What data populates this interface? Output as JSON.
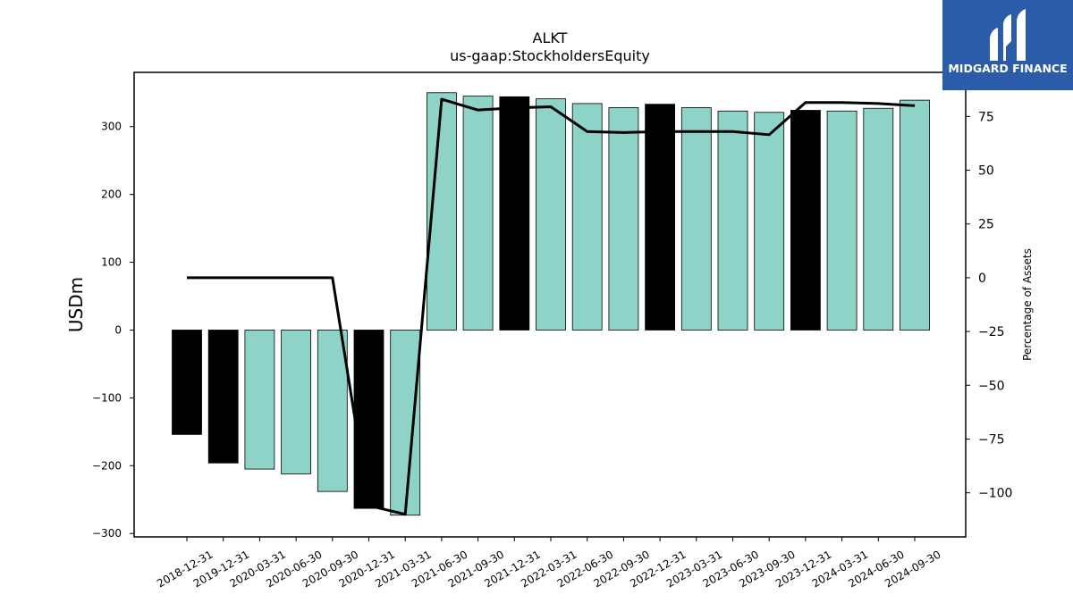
{
  "chart_data": {
    "type": "bar",
    "title": "ALKT",
    "subtitle": "us-gaap:StockholdersEquity",
    "ylabel": "USDm",
    "ylabel_right": "Percentage of Assets",
    "categories": [
      "2018-12-31",
      "2019-12-31",
      "2020-03-31",
      "2020-06-30",
      "2020-09-30",
      "2020-12-31",
      "2021-03-31",
      "2021-06-30",
      "2021-09-30",
      "2021-12-31",
      "2022-03-31",
      "2022-06-30",
      "2022-09-30",
      "2022-12-31",
      "2023-03-31",
      "2023-06-30",
      "2023-09-30",
      "2023-12-31",
      "2024-03-31",
      "2024-06-30",
      "2024-09-30"
    ],
    "values": [
      -154,
      -196,
      -205,
      -212,
      -238,
      -263,
      -273,
      350,
      345,
      344,
      341,
      334,
      328,
      333,
      328,
      323,
      321,
      324,
      323,
      327,
      339
    ],
    "bar_colors": [
      "#000000",
      "#000000",
      "#8dd3c7",
      "#8dd3c7",
      "#8dd3c7",
      "#000000",
      "#8dd3c7",
      "#8dd3c7",
      "#8dd3c7",
      "#000000",
      "#8dd3c7",
      "#8dd3c7",
      "#8dd3c7",
      "#000000",
      "#8dd3c7",
      "#8dd3c7",
      "#8dd3c7",
      "#000000",
      "#8dd3c7",
      "#8dd3c7",
      "#8dd3c7"
    ],
    "pct_of_assets": [
      0,
      0,
      0,
      0,
      0,
      -106,
      -110,
      83,
      78,
      79,
      79.5,
      68,
      67.5,
      68,
      68,
      68,
      66.5,
      81.5,
      81.5,
      81,
      80
    ],
    "ylim": [
      -305,
      380
    ],
    "y_ticks": [
      -300,
      -200,
      -100,
      0,
      100,
      200,
      300
    ],
    "ylim_right": [
      -120.5,
      95.5
    ],
    "y_ticks_right": [
      -100,
      -75,
      -50,
      -25,
      0,
      25,
      50,
      75
    ],
    "colors": {
      "accent": "#8dd3c7",
      "highlight": "#000000",
      "line": "#000000"
    }
  },
  "logo": {
    "text": "MIDGARD FINANCE",
    "background": "#2a5caa"
  }
}
